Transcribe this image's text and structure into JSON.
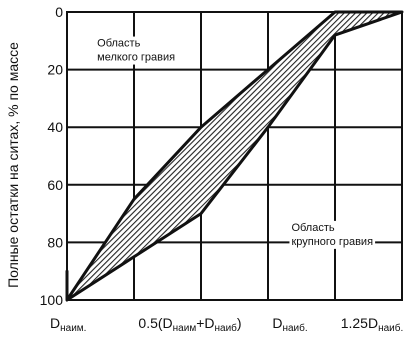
{
  "chart_data": {
    "type": "area",
    "ylabel": "Полные остатки на ситах, % по массе",
    "x_ticks": [
      {
        "base": "D",
        "sub": "наим.",
        "suffix": "",
        "value": 0
      },
      {
        "base": "0.5(D",
        "sub": "наим",
        "mid": "+D",
        "sub2": "наиб",
        "suffix": ")",
        "value": 2
      },
      {
        "base": "D",
        "sub": "наиб.",
        "suffix": "",
        "value": 4
      },
      {
        "base": "1.25D",
        "sub": "наиб.",
        "suffix": "",
        "value": 5
      }
    ],
    "xlim": [
      0,
      5
    ],
    "y_ticks": [
      "0",
      "20",
      "40",
      "60",
      "80",
      "100"
    ],
    "ylim": [
      0,
      100
    ],
    "y_reversed": true,
    "grid": true,
    "band": {
      "upper": [
        {
          "x": 0,
          "y": 100
        },
        {
          "x": 1,
          "y": 65
        },
        {
          "x": 2,
          "y": 40
        },
        {
          "x": 3,
          "y": 20
        },
        {
          "x": 4,
          "y": 0
        },
        {
          "x": 5,
          "y": 0
        }
      ],
      "lower": [
        {
          "x": 5,
          "y": 0
        },
        {
          "x": 4,
          "y": 8
        },
        {
          "x": 3,
          "y": 40
        },
        {
          "x": 2,
          "y": 70
        },
        {
          "x": 1,
          "y": 85
        },
        {
          "x": 0,
          "y": 100
        },
        {
          "x": 0,
          "y": 90
        }
      ]
    },
    "annotations": [
      {
        "lines": [
          "Область",
          "мелкого гравия"
        ],
        "x": 0.45,
        "y": 12
      },
      {
        "lines": [
          "Область",
          "крупного гравия"
        ],
        "x": 3.35,
        "y": 76
      }
    ],
    "colors": {
      "fill": "#555555",
      "line": "#111111",
      "grid": "#111111"
    }
  }
}
